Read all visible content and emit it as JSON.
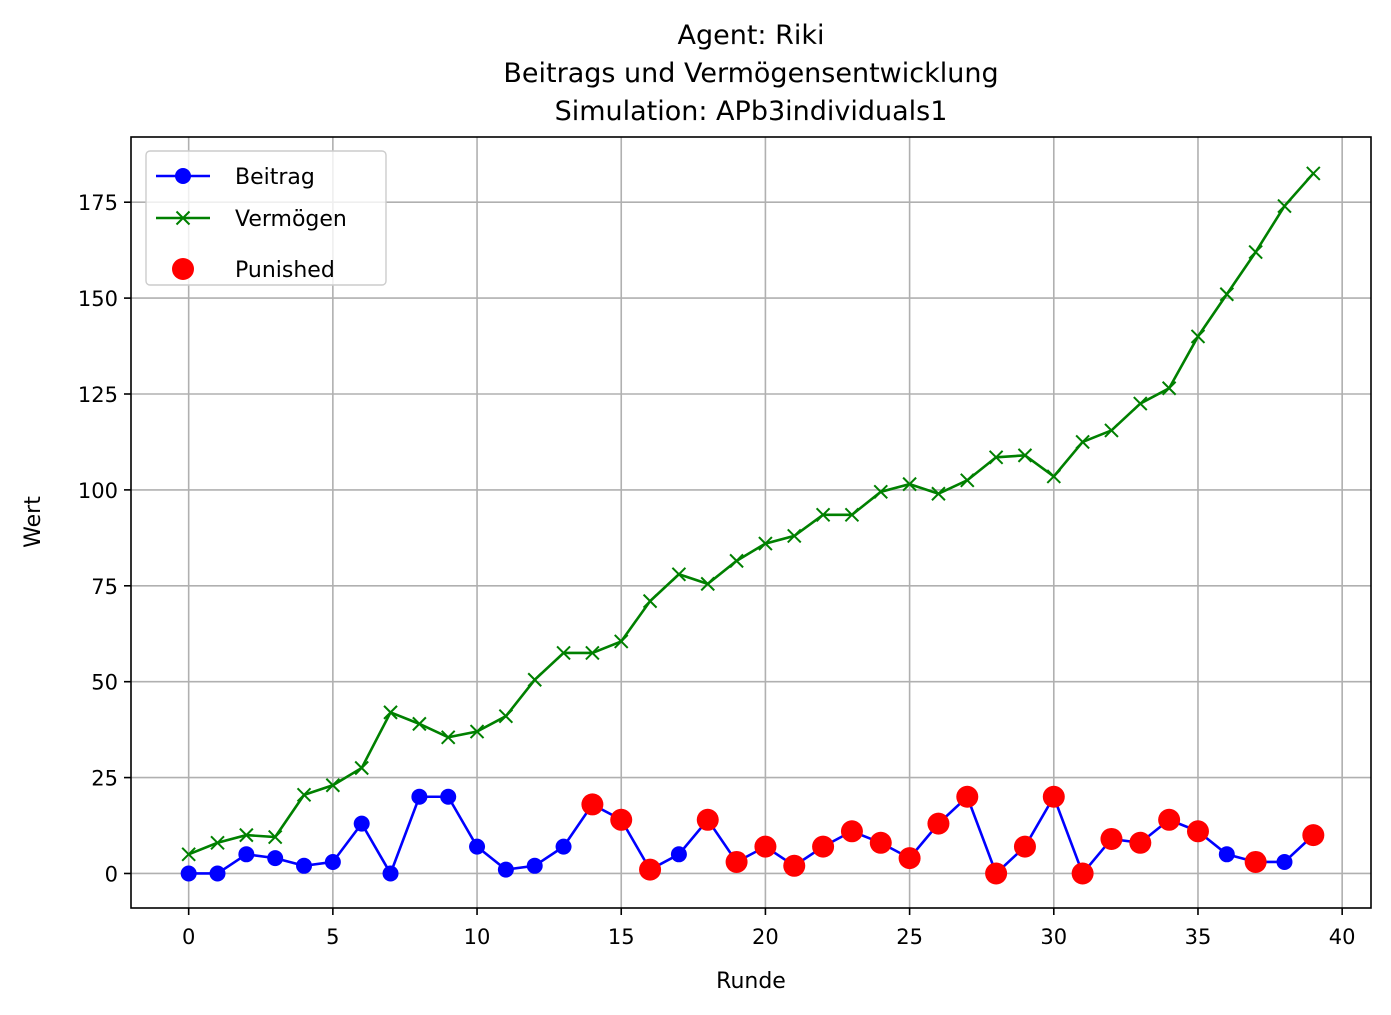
{
  "chart_data": {
    "type": "line",
    "title": [
      "Agent: Riki",
      "Beitrags und Vermögensentwicklung",
      "Simulation: APb3individuals1"
    ],
    "xlabel": "Runde",
    "ylabel": "Wert",
    "xlim": [
      -2,
      41
    ],
    "ylim": [
      -9,
      192
    ],
    "xticks": [
      0,
      5,
      10,
      15,
      20,
      25,
      30,
      35,
      40
    ],
    "yticks": [
      0,
      25,
      50,
      75,
      100,
      125,
      150,
      175
    ],
    "grid": true,
    "legend_position": "top-left",
    "x": [
      0,
      1,
      2,
      3,
      4,
      5,
      6,
      7,
      8,
      9,
      10,
      11,
      12,
      13,
      14,
      15,
      16,
      17,
      18,
      19,
      20,
      21,
      22,
      23,
      24,
      25,
      26,
      27,
      28,
      29,
      30,
      31,
      32,
      33,
      34,
      35,
      36,
      37,
      38,
      39
    ],
    "series": [
      {
        "name": "Beitrag",
        "kind": "line-marker-circle",
        "color": "#0000ff",
        "values": [
          0,
          0,
          5,
          4,
          2,
          3,
          13,
          0,
          20,
          20,
          7,
          1,
          2,
          7,
          18,
          14,
          1,
          5,
          14,
          3,
          7,
          2,
          7,
          11,
          8,
          4,
          13,
          20,
          0,
          7,
          20,
          0,
          9,
          8,
          14,
          11,
          5,
          3,
          3,
          10
        ]
      },
      {
        "name": "Vermögen",
        "kind": "line-marker-x",
        "color": "#008000",
        "values": [
          5,
          8,
          10,
          9.5,
          20.5,
          23,
          27.5,
          42,
          39,
          35.5,
          37,
          41,
          50.5,
          57.5,
          57.5,
          60.5,
          71,
          78,
          75.5,
          81.5,
          86,
          88,
          93.5,
          93.5,
          99.5,
          101.5,
          99,
          102.5,
          108.5,
          109,
          103.5,
          112.5,
          115.5,
          122.5,
          126.5,
          140,
          151,
          162,
          174,
          182.5
        ]
      },
      {
        "name": "Punished",
        "kind": "scatter",
        "color": "#ff0000",
        "points": [
          [
            14,
            18
          ],
          [
            15,
            14
          ],
          [
            16,
            1
          ],
          [
            18,
            14
          ],
          [
            19,
            3
          ],
          [
            20,
            7
          ],
          [
            21,
            2
          ],
          [
            22,
            7
          ],
          [
            23,
            11
          ],
          [
            24,
            8
          ],
          [
            25,
            4
          ],
          [
            26,
            13
          ],
          [
            27,
            20
          ],
          [
            28,
            0
          ],
          [
            29,
            7
          ],
          [
            30,
            20
          ],
          [
            31,
            0
          ],
          [
            32,
            9
          ],
          [
            33,
            8
          ],
          [
            34,
            14
          ],
          [
            35,
            11
          ],
          [
            37,
            3
          ],
          [
            39,
            10
          ]
        ]
      }
    ]
  }
}
